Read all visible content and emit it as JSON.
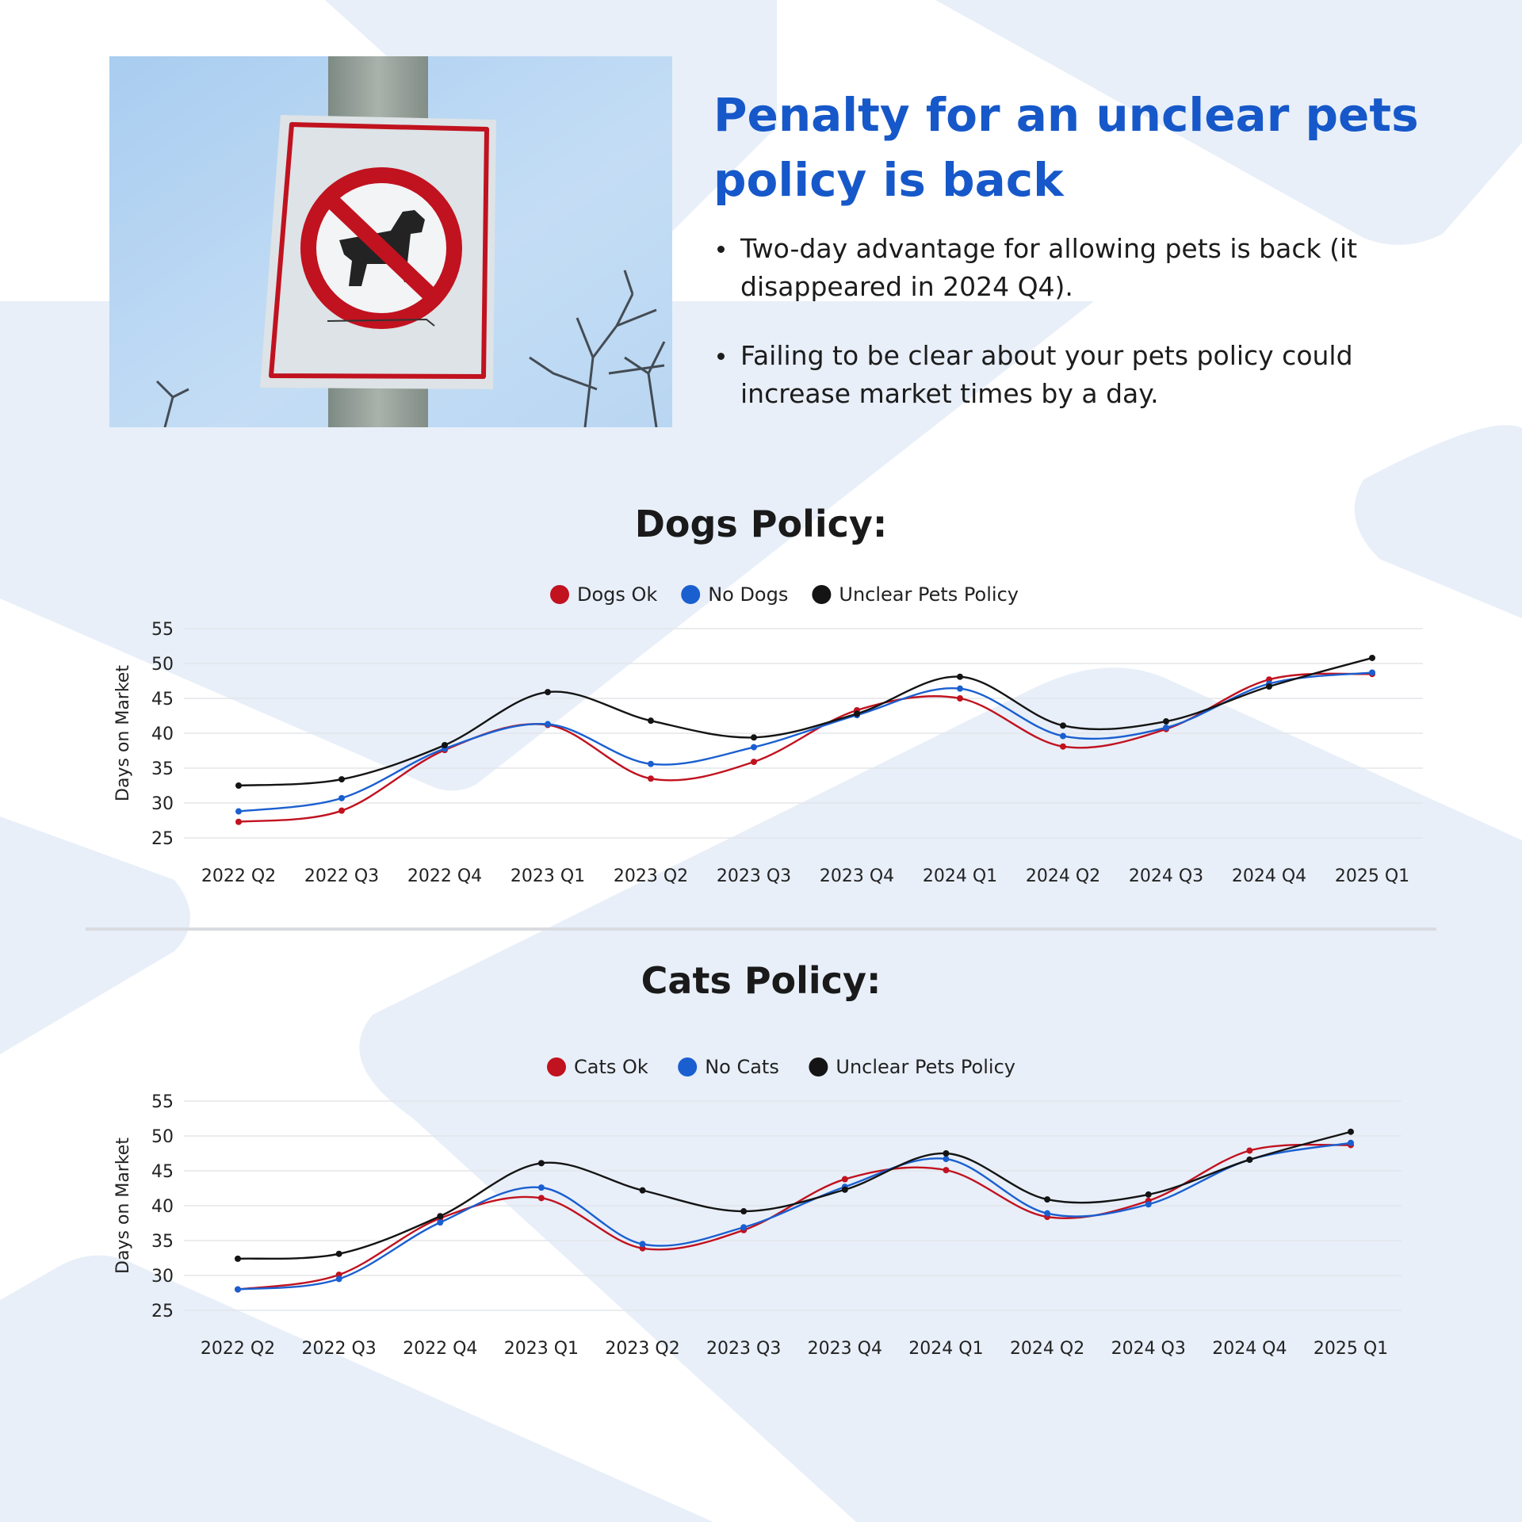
{
  "header": {
    "title": "Penalty for an unclear pets policy is back",
    "bullets": [
      "Two-day advantage for allowing pets is back (it disappeared in 2024 Q4).",
      "Failing to be clear about your pets policy could increase market times by a day."
    ]
  },
  "photo": {
    "description_icon": "no-dogs-sign-icon"
  },
  "colors": {
    "accent": "#1658c9",
    "red": "#c1121f",
    "blue": "#1a5fd0",
    "black": "#141414",
    "background_shape": "#e8eff9"
  },
  "chart_data": [
    {
      "type": "line",
      "title": "Dogs Policy:",
      "xlabel": "",
      "ylabel": "Days on Market",
      "ylim": [
        25,
        55
      ],
      "yticks": [
        25,
        30,
        35,
        40,
        45,
        50,
        55
      ],
      "grid": true,
      "legend_position": "top-center",
      "categories": [
        "2022 Q2",
        "2022 Q3",
        "2022 Q4",
        "2023 Q1",
        "2023 Q2",
        "2023 Q3",
        "2023 Q4",
        "2024 Q1",
        "2024 Q2",
        "2024 Q3",
        "2024 Q4",
        "2025 Q1"
      ],
      "series": [
        {
          "name": "Dogs Ok",
          "color": "#c1121f",
          "values": [
            27.3,
            28.9,
            37.6,
            41.2,
            33.5,
            35.9,
            43.3,
            45.0,
            38.1,
            40.6,
            47.7,
            48.5
          ]
        },
        {
          "name": "No Dogs",
          "color": "#1a5fd0",
          "values": [
            28.8,
            30.7,
            37.8,
            41.3,
            35.6,
            38.0,
            42.6,
            46.4,
            39.6,
            40.8,
            47.1,
            48.7
          ]
        },
        {
          "name": "Unclear Pets Policy",
          "color": "#141414",
          "values": [
            32.5,
            33.4,
            38.3,
            45.9,
            41.8,
            39.4,
            42.8,
            48.1,
            41.1,
            41.7,
            46.7,
            50.8
          ]
        }
      ]
    },
    {
      "type": "line",
      "title": "Cats Policy:",
      "xlabel": "",
      "ylabel": "Days on Market",
      "ylim": [
        25,
        55
      ],
      "yticks": [
        25,
        30,
        35,
        40,
        45,
        50,
        55
      ],
      "grid": true,
      "legend_position": "top-center",
      "categories": [
        "2022 Q2",
        "2022 Q3",
        "2022 Q4",
        "2023 Q1",
        "2023 Q2",
        "2023 Q3",
        "2023 Q4",
        "2024 Q1",
        "2024 Q2",
        "2024 Q3",
        "2024 Q4",
        "2025 Q1"
      ],
      "series": [
        {
          "name": "Cats Ok",
          "color": "#c1121f",
          "values": [
            28.0,
            30.1,
            38.2,
            41.1,
            33.9,
            36.5,
            43.8,
            45.1,
            38.4,
            40.7,
            47.9,
            48.7
          ]
        },
        {
          "name": "No Cats",
          "color": "#1a5fd0",
          "values": [
            28.0,
            29.5,
            37.6,
            42.6,
            34.5,
            36.9,
            42.7,
            46.7,
            38.9,
            40.2,
            46.6,
            49.0
          ]
        },
        {
          "name": "Unclear Pets Policy",
          "color": "#141414",
          "values": [
            32.4,
            33.1,
            38.5,
            46.1,
            42.2,
            39.2,
            42.3,
            47.5,
            40.9,
            41.6,
            46.6,
            50.6
          ]
        }
      ]
    }
  ]
}
